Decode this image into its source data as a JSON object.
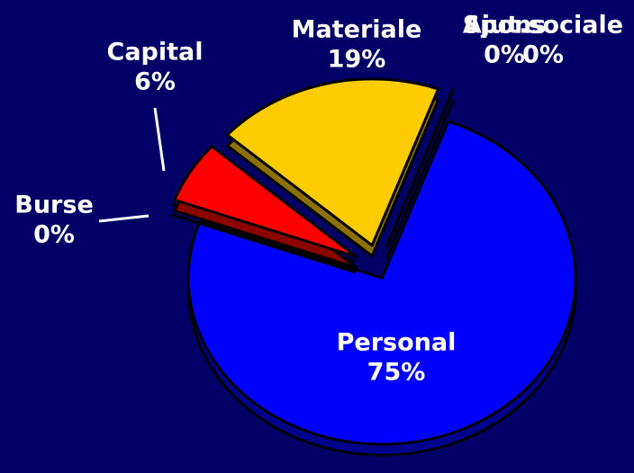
{
  "chart_data": {
    "type": "pie",
    "categories": [
      "Personal",
      "Burse",
      "Capital",
      "Materiale",
      "Spons",
      "Ajut.sociale"
    ],
    "values": [
      75,
      0,
      6,
      19,
      0,
      0
    ],
    "value_labels": [
      "75%",
      "0%",
      "6%",
      "19%",
      "0%",
      "0%"
    ],
    "colors": [
      "#0000ff",
      "#33ff33",
      "#ff0000",
      "#ffcc00",
      "#ffffff",
      "#ffffff"
    ]
  }
}
